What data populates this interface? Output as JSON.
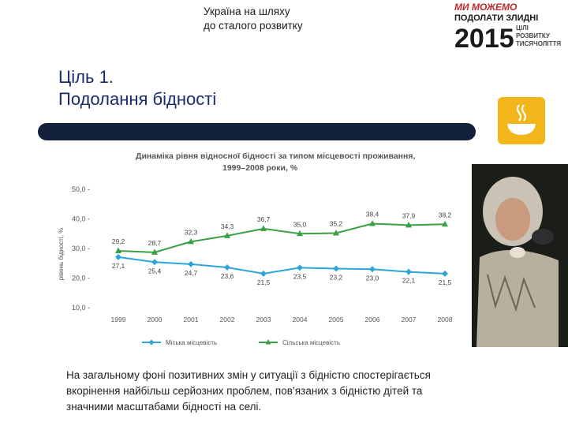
{
  "header": {
    "subtitle_lines": [
      "Україна на шляху",
      "до сталого розвитку"
    ],
    "title_lines": [
      "Ціль 1.",
      "Подолання бідності"
    ]
  },
  "logo": {
    "line1": "МИ МОЖЕМО",
    "line2": "ПОДОЛАТИ ЗЛИДНІ",
    "year": "2015",
    "side_lines": [
      "ЦІЛІ",
      "РОЗВИТКУ",
      "ТИСЯЧОЛІТТЯ"
    ]
  },
  "colors": {
    "title": "#1a2a6c",
    "band": "#14213d",
    "icon_bg": "#f2b51a",
    "urban": "#2ba6d6",
    "rural": "#3aa045",
    "logo_red": "#c0282d"
  },
  "icons": {
    "goal_icon": "bowl-icon",
    "photo": "elderly-woman-photo"
  },
  "chart_data": {
    "type": "line",
    "title_lines": [
      "Динаміка рівня відносної бідності за типом місцевості проживання,",
      "1999–2008 роки, %"
    ],
    "ylabel": "рівень бідності, %",
    "xlabel": "",
    "categories": [
      "1999",
      "2000",
      "2001",
      "2002",
      "2003",
      "2004",
      "2005",
      "2006",
      "2007",
      "2008"
    ],
    "ylim": [
      10,
      50
    ],
    "yticks": [
      "50,0",
      "40,0",
      "30,0",
      "20,0",
      "10,0"
    ],
    "series": [
      {
        "name": "Міська місцевість",
        "values": [
          27.1,
          25.4,
          24.7,
          23.6,
          21.5,
          23.5,
          23.2,
          23.0,
          22.1,
          21.5
        ],
        "labels": [
          "27,1",
          "25,4",
          "24,7",
          "23,6",
          "21,5",
          "23,5",
          "23,2",
          "23,0",
          "22,1",
          "21,5"
        ],
        "color": "#2ba6d6",
        "marker": "diamond"
      },
      {
        "name": "Сільська місцевість",
        "values": [
          29.2,
          28.7,
          32.3,
          34.3,
          36.7,
          35.0,
          35.2,
          38.4,
          37.9,
          38.2
        ],
        "labels": [
          "29,2",
          "28,7",
          "32,3",
          "34,3",
          "36,7",
          "35,0",
          "35,2",
          "38,4",
          "37,9",
          "38,2"
        ],
        "color": "#3aa045",
        "marker": "triangle"
      }
    ],
    "grid": false,
    "legend_placement": "bottom"
  },
  "caption_lines": [
    "На загальному фоні позитивних змін у ситуації з бідністю спостерігається",
    "вкорінення найбільш серйозних проблем, пов’язаних з бідністю дітей та",
    "значними масштабами бідності на селі."
  ]
}
